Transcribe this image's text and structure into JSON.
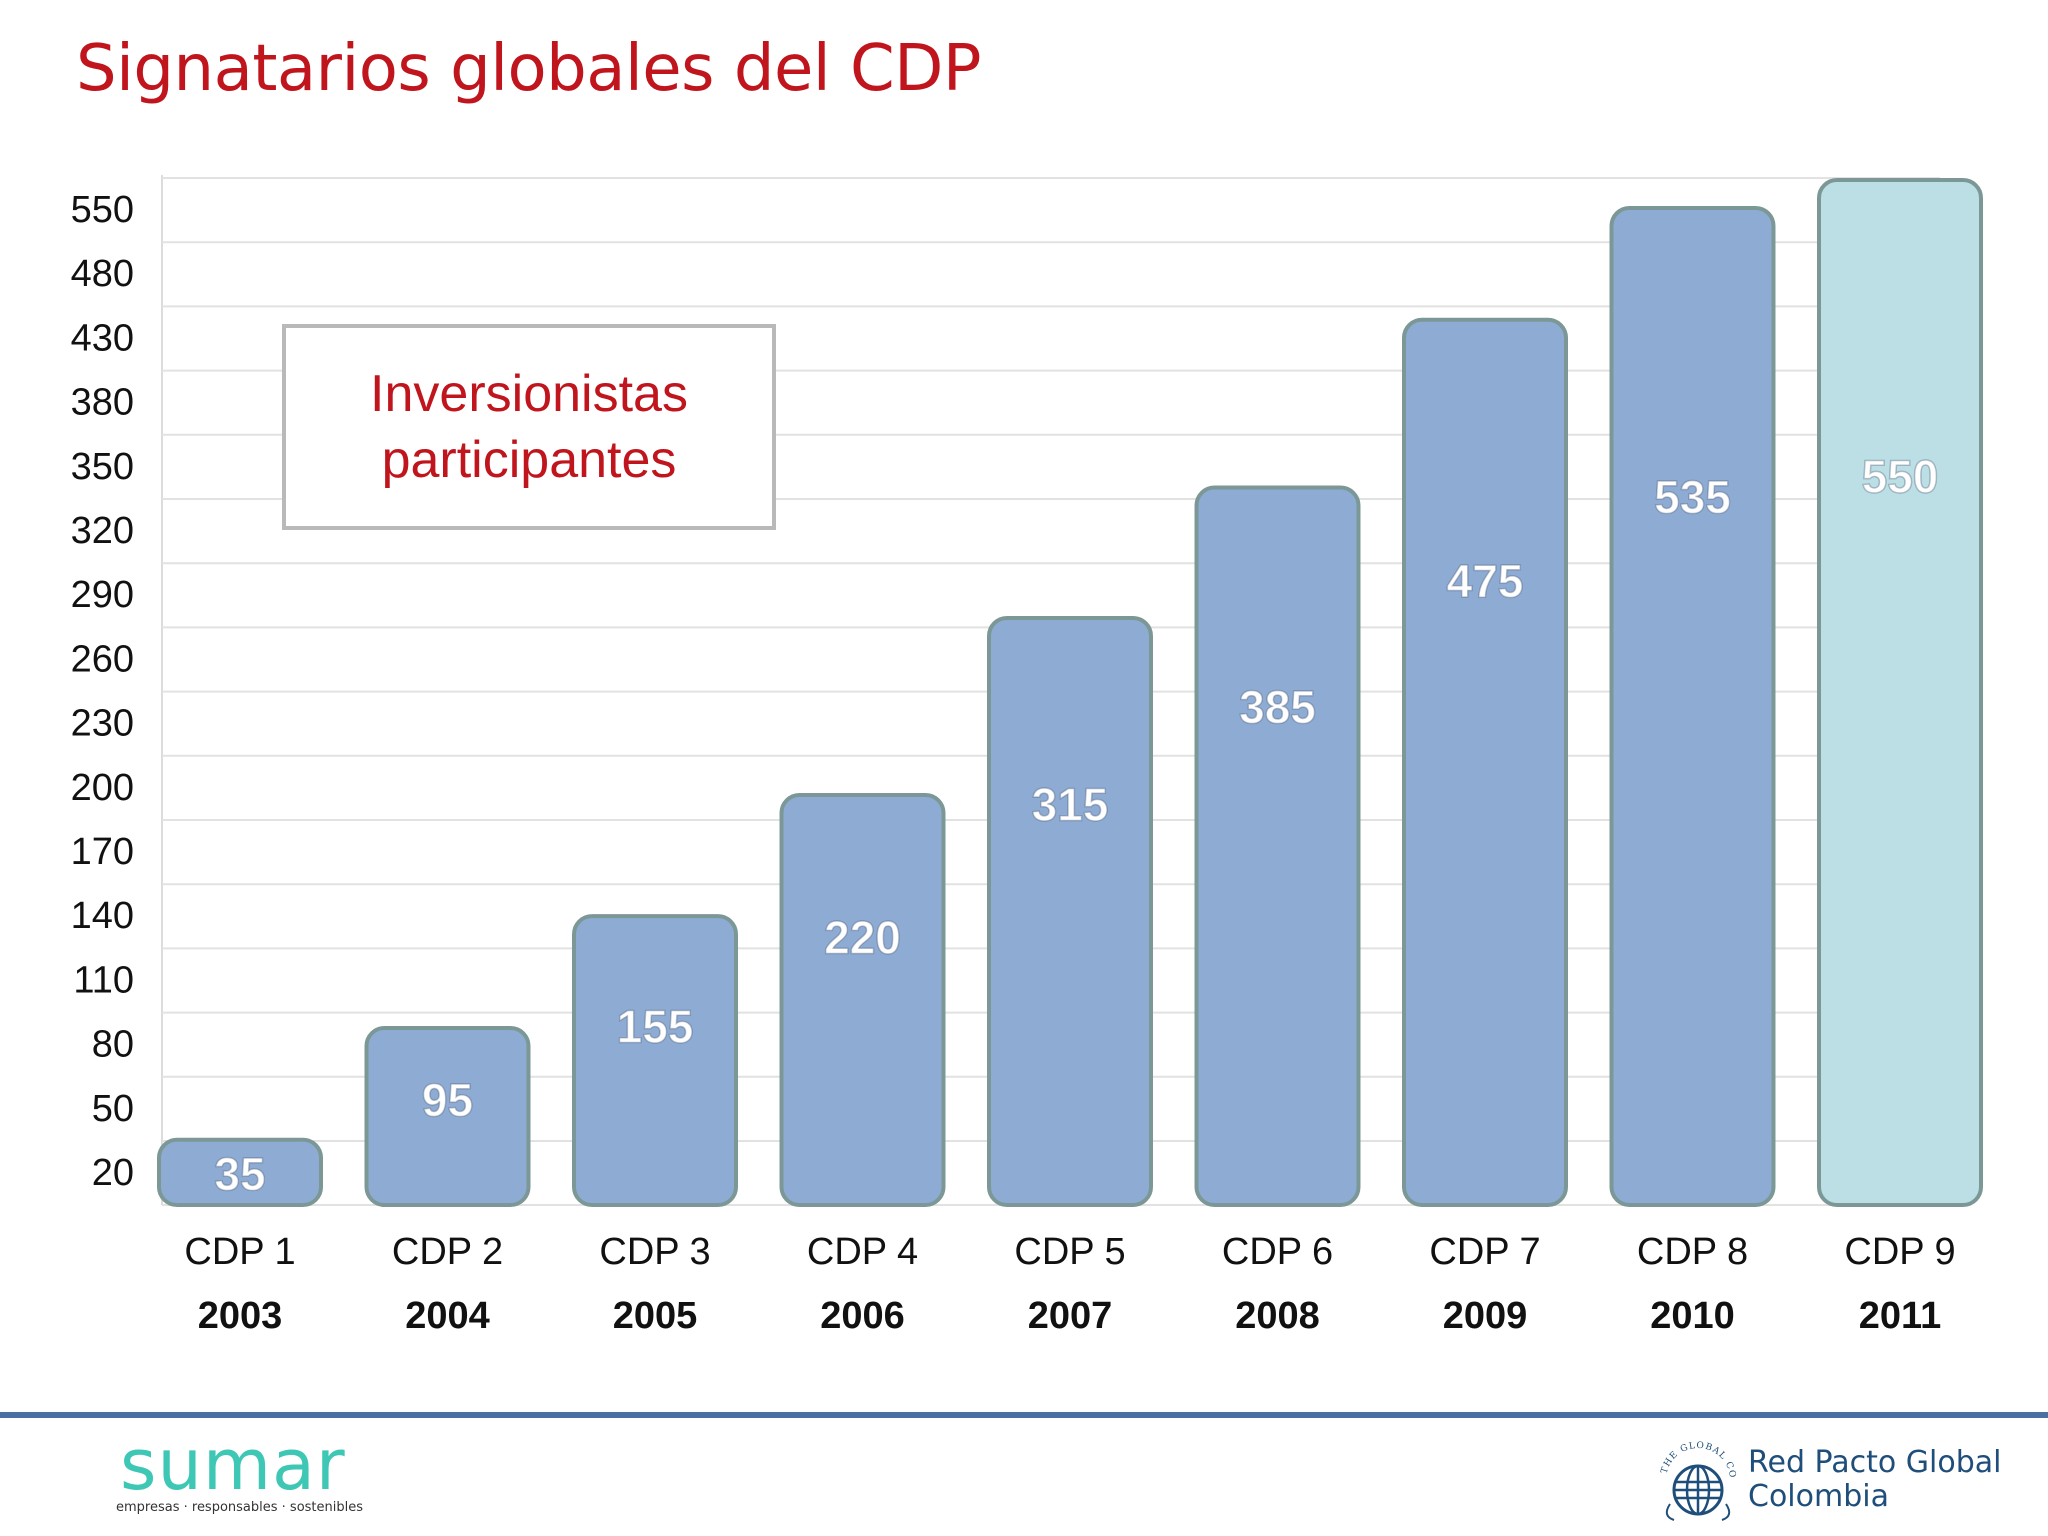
{
  "title": "Signatarios globales del CDP",
  "legend": {
    "line1": "Inversionistas",
    "line2": "participantes"
  },
  "colors": {
    "title": "#c0151d",
    "bar": "#8eabd3",
    "bar_stroke": "#7c9896",
    "bar_highlight": "#bcdfe5",
    "footer_line": "#4a6fa1"
  },
  "chart_data": {
    "type": "bar",
    "categories": [
      "CDP 1",
      "CDP 2",
      "CDP 3",
      "CDP 4",
      "CDP 5",
      "CDP 6",
      "CDP 7",
      "CDP 8",
      "CDP 9"
    ],
    "years": [
      "2003",
      "2004",
      "2005",
      "2006",
      "2007",
      "2008",
      "2009",
      "2010",
      "2011"
    ],
    "values": [
      35,
      95,
      155,
      220,
      315,
      385,
      475,
      535,
      550
    ],
    "yticks": [
      "550",
      "480",
      "430",
      "380",
      "350",
      "320",
      "290",
      "260",
      "230",
      "200",
      "170",
      "140",
      "110",
      "80",
      "50",
      "20"
    ],
    "highlighted_category": "CDP 9",
    "grid": true
  },
  "footer": {
    "left_logo": {
      "word": "sumar",
      "tagline": "empresas · responsables · sostenibles"
    },
    "right_logo": {
      "line1": "Red Pacto Global",
      "line2": "Colombia",
      "seal_text": "THE GLOBAL COMPACT"
    }
  }
}
